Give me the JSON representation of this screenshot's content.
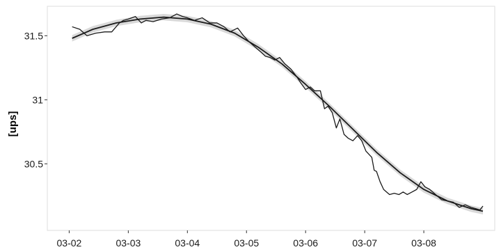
{
  "chart_data": {
    "type": "line",
    "title": "",
    "xlabel": "",
    "ylabel": "[ups]",
    "x_tick_labels": [
      "03-02",
      "03-03",
      "03-04",
      "03-05",
      "03-06",
      "03-07",
      "03-08"
    ],
    "x_ticks": [
      0,
      1,
      2,
      3,
      4,
      5,
      6
    ],
    "y_ticks": [
      30.5,
      31,
      31.5
    ],
    "y_tick_labels": [
      "30.5",
      "31",
      "31.5"
    ],
    "xlim": [
      -0.37,
      7.2
    ],
    "ylim": [
      29.98,
      31.73
    ],
    "grid": false,
    "series": [
      {
        "role": "observed",
        "color": "#1a1a1a",
        "x": [
          0.05,
          0.18,
          0.3,
          0.45,
          0.6,
          0.72,
          0.85,
          0.92,
          1.0,
          1.12,
          1.22,
          1.3,
          1.42,
          1.56,
          1.7,
          1.82,
          1.92,
          2.0,
          2.12,
          2.25,
          2.38,
          2.5,
          2.62,
          2.72,
          2.85,
          2.95,
          3.05,
          3.15,
          3.25,
          3.32,
          3.4,
          3.48,
          3.56,
          3.65,
          3.75,
          3.85,
          3.92,
          4.0,
          4.08,
          4.15,
          4.25,
          4.32,
          4.38,
          4.45,
          4.52,
          4.58,
          4.65,
          4.72,
          4.8,
          4.88,
          4.95,
          5.02,
          5.08,
          5.12,
          5.16,
          5.2,
          5.26,
          5.32,
          5.42,
          5.5,
          5.58,
          5.65,
          5.72,
          5.8,
          5.88,
          5.95,
          6.02,
          6.1,
          6.2,
          6.3,
          6.4,
          6.5,
          6.6,
          6.7,
          6.8,
          6.88,
          6.95,
          7.0
        ],
        "y": [
          31.57,
          31.55,
          31.5,
          31.52,
          31.53,
          31.53,
          31.6,
          31.62,
          31.63,
          31.65,
          31.6,
          31.62,
          31.61,
          31.63,
          31.64,
          31.67,
          31.65,
          31.64,
          31.62,
          31.64,
          31.6,
          31.6,
          31.57,
          31.53,
          31.56,
          31.5,
          31.45,
          31.41,
          31.37,
          31.34,
          31.33,
          31.31,
          31.33,
          31.28,
          31.24,
          31.18,
          31.13,
          31.08,
          31.1,
          31.07,
          31.07,
          30.93,
          30.95,
          30.9,
          30.78,
          30.85,
          30.73,
          30.7,
          30.68,
          30.72,
          30.68,
          30.6,
          30.57,
          30.55,
          30.45,
          30.44,
          30.36,
          30.3,
          30.26,
          30.27,
          30.26,
          30.28,
          30.26,
          30.28,
          30.3,
          30.36,
          30.32,
          30.3,
          30.26,
          30.22,
          30.21,
          30.2,
          30.16,
          30.18,
          30.16,
          30.15,
          30.14,
          30.17
        ]
      },
      {
        "role": "fitted",
        "color": "#1a1a1a",
        "x": [
          0.05,
          0.4,
          0.8,
          1.2,
          1.6,
          2.0,
          2.4,
          2.8,
          3.2,
          3.6,
          4.0,
          4.4,
          4.8,
          5.2,
          5.6,
          6.0,
          6.4,
          6.8,
          7.0
        ],
        "y": [
          31.48,
          31.55,
          31.6,
          31.63,
          31.645,
          31.63,
          31.59,
          31.52,
          31.41,
          31.28,
          31.12,
          30.95,
          30.77,
          30.59,
          30.43,
          30.3,
          30.21,
          30.15,
          30.13
        ]
      }
    ]
  }
}
